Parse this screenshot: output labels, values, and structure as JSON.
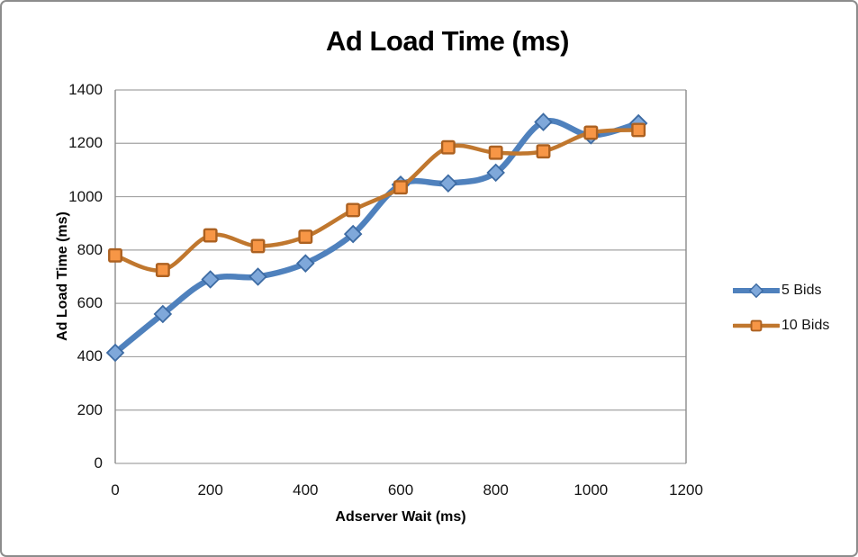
{
  "window": {
    "background": "#ffffff",
    "border_color": "#8c8c8c"
  },
  "chart_data": {
    "type": "line",
    "title": "Ad Load Time (ms)",
    "xlabel": "Adserver Wait (ms)",
    "ylabel": "Ad Load Time (ms)",
    "x": [
      0,
      100,
      200,
      300,
      400,
      500,
      600,
      700,
      800,
      900,
      1000,
      1100
    ],
    "series": [
      {
        "name": "5 Bids",
        "values": [
          415,
          560,
          690,
          700,
          750,
          860,
          1045,
          1050,
          1090,
          1280,
          1230,
          1275
        ],
        "color": "#4F81BD",
        "marker": "diamond",
        "marker_fill": "#7FA8DA",
        "marker_stroke": "#3D6BA3",
        "line_width": 6.5
      },
      {
        "name": "10 Bids",
        "values": [
          780,
          725,
          855,
          815,
          850,
          950,
          1035,
          1185,
          1165,
          1170,
          1240,
          1250
        ],
        "color": "#C0772E",
        "marker": "square",
        "marker_fill": "#F79646",
        "marker_stroke": "#AC6121",
        "line_width": 4.5
      }
    ],
    "xlim": [
      0,
      1200
    ],
    "ylim": [
      0,
      1400
    ],
    "x_ticks": [
      0,
      200,
      400,
      600,
      800,
      1000,
      1200
    ],
    "y_ticks": [
      0,
      200,
      400,
      600,
      800,
      1000,
      1200,
      1400
    ],
    "grid": true,
    "smooth": true,
    "gridline_color": "#a3a3a3",
    "axis_color": "#8c8c8c",
    "legend_position": "right"
  }
}
